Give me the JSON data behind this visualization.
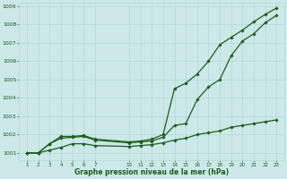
{
  "title": "Graphe pression niveau de la mer (hPa)",
  "background_color": "#cce8e8",
  "grid_color": "#b8d8d8",
  "line_color": "#1a5e1a",
  "ylim": [
    1000.6,
    1009.2
  ],
  "yticks": [
    1001,
    1002,
    1003,
    1004,
    1005,
    1006,
    1007,
    1008,
    1009
  ],
  "x_values_all": [
    1,
    2,
    3,
    4,
    5,
    6,
    7,
    10,
    11,
    12,
    13,
    14,
    15,
    16,
    17,
    18,
    19,
    20,
    21,
    22,
    23
  ],
  "line_steady": [
    1001.0,
    1001.0,
    1001.15,
    1001.3,
    1001.5,
    1001.5,
    1001.4,
    1001.35,
    1001.4,
    1001.45,
    1001.55,
    1001.7,
    1001.8,
    1002.0,
    1002.1,
    1002.2,
    1002.4,
    1002.5,
    1002.6,
    1002.7,
    1002.8
  ],
  "line_fast1": [
    1001.0,
    1001.0,
    1001.5,
    1001.8,
    1001.85,
    1001.9,
    1001.7,
    1001.55,
    1001.6,
    1001.65,
    1001.85,
    1002.5,
    1002.6,
    1003.9,
    1004.6,
    1005.0,
    1006.3,
    1007.1,
    1007.5,
    1008.1,
    1008.5
  ],
  "line_fast2": [
    1001.0,
    1001.0,
    1001.5,
    1001.9,
    1001.9,
    1001.95,
    1001.75,
    1001.6,
    1001.65,
    1001.75,
    1002.0,
    1004.5,
    1004.8,
    1005.3,
    1006.0,
    1006.9,
    1007.3,
    1007.7,
    1008.15,
    1008.55,
    1008.9
  ]
}
